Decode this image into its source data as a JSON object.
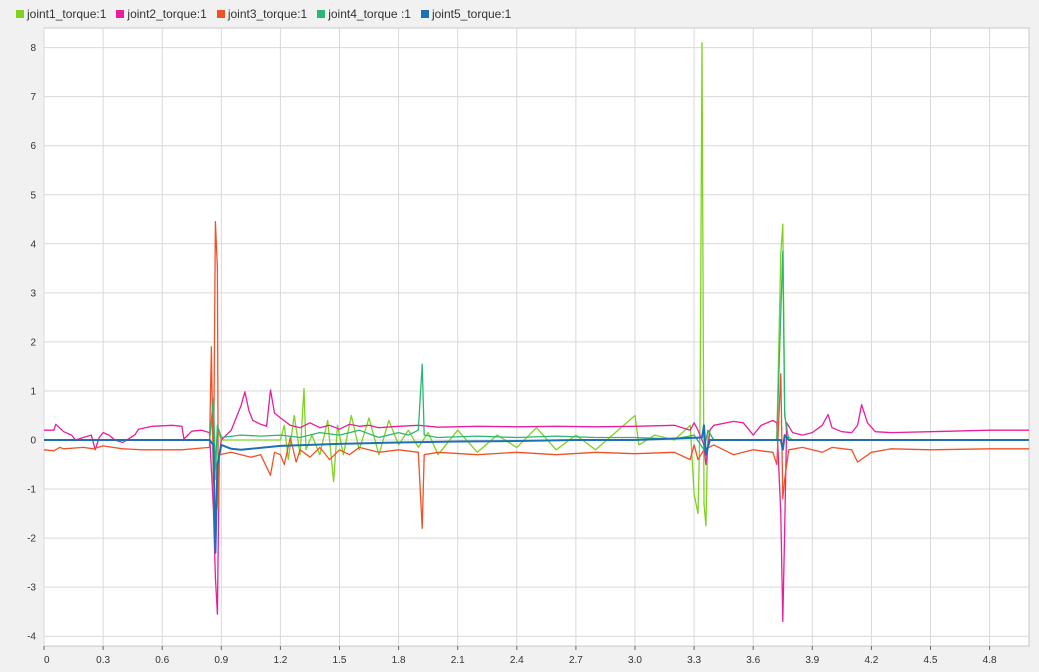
{
  "chart_data": {
    "type": "line",
    "title": "",
    "xlabel": "",
    "ylabel": "",
    "xlim": [
      0,
      5.0
    ],
    "ylim": [
      -4.2,
      8.4
    ],
    "grid": true,
    "legend_position": "top-left",
    "x_ticks": [
      0,
      0.3,
      0.6,
      0.9,
      1.2,
      1.5,
      1.8,
      2.1,
      2.4,
      2.7,
      3.0,
      3.3,
      3.6,
      3.9,
      4.2,
      4.5,
      4.8
    ],
    "x_tick_labels": [
      "0",
      "0.3",
      "0.6",
      "0.9",
      "1.2",
      "1.5",
      "1.8",
      "2.1",
      "2.4",
      "2.7",
      "3.0",
      "3.3",
      "3.6",
      "3.9",
      "4.2",
      "4.5",
      "4.8"
    ],
    "y_ticks": [
      -4,
      -3,
      -2,
      -1,
      0,
      1,
      2,
      3,
      4,
      5,
      6,
      7,
      8
    ],
    "y_tick_labels": [
      "-4",
      "-3",
      "-2",
      "-1",
      "0",
      "1",
      "2",
      "3",
      "4",
      "5",
      "6",
      "7",
      "8"
    ],
    "series": [
      {
        "name": "joint1_torque:1",
        "color": "#7ed321",
        "points": [
          [
            0,
            0
          ],
          [
            0.84,
            0
          ],
          [
            0.86,
            0.6
          ],
          [
            0.87,
            -0.8
          ],
          [
            0.88,
            0.2
          ],
          [
            0.9,
            0
          ],
          [
            1.2,
            0
          ],
          [
            1.22,
            0.3
          ],
          [
            1.24,
            -0.4
          ],
          [
            1.27,
            0.5
          ],
          [
            1.3,
            -0.3
          ],
          [
            1.32,
            1.05
          ],
          [
            1.33,
            -0.2
          ],
          [
            1.36,
            0.1
          ],
          [
            1.4,
            -0.3
          ],
          [
            1.44,
            0.4
          ],
          [
            1.47,
            -0.85
          ],
          [
            1.49,
            0.3
          ],
          [
            1.52,
            -0.3
          ],
          [
            1.56,
            0.5
          ],
          [
            1.6,
            -0.2
          ],
          [
            1.65,
            0.45
          ],
          [
            1.7,
            -0.3
          ],
          [
            1.75,
            0.4
          ],
          [
            1.8,
            -0.1
          ],
          [
            1.85,
            0.2
          ],
          [
            1.9,
            -0.15
          ],
          [
            1.95,
            0.15
          ],
          [
            2.0,
            -0.3
          ],
          [
            2.1,
            0.2
          ],
          [
            2.2,
            -0.25
          ],
          [
            2.3,
            0.1
          ],
          [
            2.4,
            -0.15
          ],
          [
            2.5,
            0.25
          ],
          [
            2.6,
            -0.2
          ],
          [
            2.7,
            0.1
          ],
          [
            2.8,
            -0.2
          ],
          [
            2.9,
            0.15
          ],
          [
            3.0,
            0.5
          ],
          [
            3.02,
            -0.1
          ],
          [
            3.1,
            0.1
          ],
          [
            3.2,
            0
          ],
          [
            3.28,
            0.3
          ],
          [
            3.3,
            -1.1
          ],
          [
            3.32,
            -1.5
          ],
          [
            3.33,
            0.3
          ],
          [
            3.34,
            8.1
          ],
          [
            3.35,
            -1.3
          ],
          [
            3.36,
            -1.75
          ],
          [
            3.37,
            0.2
          ],
          [
            3.4,
            0
          ],
          [
            3.72,
            0
          ],
          [
            3.74,
            3.8
          ],
          [
            3.75,
            4.4
          ],
          [
            3.76,
            0.6
          ],
          [
            3.77,
            0.1
          ],
          [
            3.8,
            0
          ],
          [
            5.0,
            0
          ]
        ]
      },
      {
        "name": "joint2_torque:1",
        "color": "#e91e9c",
        "points": [
          [
            0,
            0.2
          ],
          [
            0.05,
            0.2
          ],
          [
            0.06,
            0.32
          ],
          [
            0.1,
            0.17
          ],
          [
            0.14,
            0.1
          ],
          [
            0.16,
            0
          ],
          [
            0.2,
            0.05
          ],
          [
            0.24,
            0.1
          ],
          [
            0.26,
            -0.2
          ],
          [
            0.28,
            0.05
          ],
          [
            0.3,
            0.15
          ],
          [
            0.33,
            0.1
          ],
          [
            0.36,
            0
          ],
          [
            0.4,
            -0.05
          ],
          [
            0.42,
            0
          ],
          [
            0.46,
            0.1
          ],
          [
            0.48,
            0.22
          ],
          [
            0.55,
            0.28
          ],
          [
            0.65,
            0.3
          ],
          [
            0.7,
            0.28
          ],
          [
            0.71,
            0.02
          ],
          [
            0.75,
            0.18
          ],
          [
            0.8,
            0.2
          ],
          [
            0.84,
            0.15
          ],
          [
            0.86,
            -1.4
          ],
          [
            0.87,
            -2.8
          ],
          [
            0.88,
            -3.55
          ],
          [
            0.89,
            -0.3
          ],
          [
            0.9,
            0
          ],
          [
            0.95,
            0.2
          ],
          [
            0.98,
            0.5
          ],
          [
            1.0,
            0.7
          ],
          [
            1.02,
            0.98
          ],
          [
            1.04,
            0.6
          ],
          [
            1.06,
            0.4
          ],
          [
            1.1,
            0.32
          ],
          [
            1.13,
            0.28
          ],
          [
            1.15,
            1.02
          ],
          [
            1.17,
            0.55
          ],
          [
            1.2,
            0.45
          ],
          [
            1.25,
            0.3
          ],
          [
            1.3,
            0.25
          ],
          [
            1.35,
            0.35
          ],
          [
            1.4,
            0.25
          ],
          [
            1.45,
            0.3
          ],
          [
            1.5,
            0.22
          ],
          [
            1.55,
            0.32
          ],
          [
            1.6,
            0.28
          ],
          [
            1.65,
            0.3
          ],
          [
            1.7,
            0.25
          ],
          [
            1.8,
            0.28
          ],
          [
            1.9,
            0.3
          ],
          [
            2.0,
            0.26
          ],
          [
            2.2,
            0.28
          ],
          [
            2.4,
            0.27
          ],
          [
            2.6,
            0.28
          ],
          [
            2.8,
            0.27
          ],
          [
            3.0,
            0.28
          ],
          [
            3.2,
            0.3
          ],
          [
            3.28,
            0.2
          ],
          [
            3.3,
            0.35
          ],
          [
            3.32,
            0.2
          ],
          [
            3.35,
            -0.1
          ],
          [
            3.36,
            -0.5
          ],
          [
            3.38,
            0.2
          ],
          [
            3.4,
            0.3
          ],
          [
            3.5,
            0.38
          ],
          [
            3.55,
            0.35
          ],
          [
            3.58,
            0.2
          ],
          [
            3.6,
            0.1
          ],
          [
            3.64,
            0.3
          ],
          [
            3.7,
            0.4
          ],
          [
            3.72,
            0.35
          ],
          [
            3.74,
            -1.5
          ],
          [
            3.75,
            -3.7
          ],
          [
            3.76,
            -1.8
          ],
          [
            3.77,
            0.35
          ],
          [
            3.8,
            0.15
          ],
          [
            3.85,
            0.1
          ],
          [
            3.9,
            0.15
          ],
          [
            3.95,
            0.3
          ],
          [
            3.98,
            0.52
          ],
          [
            4.0,
            0.25
          ],
          [
            4.05,
            0.17
          ],
          [
            4.1,
            0.15
          ],
          [
            4.13,
            0.3
          ],
          [
            4.15,
            0.72
          ],
          [
            4.18,
            0.35
          ],
          [
            4.22,
            0.17
          ],
          [
            4.3,
            0.15
          ],
          [
            4.5,
            0.17
          ],
          [
            4.8,
            0.2
          ],
          [
            5.0,
            0.2
          ]
        ]
      },
      {
        "name": "joint3_torque:1",
        "color": "#f05228",
        "points": [
          [
            0,
            -0.2
          ],
          [
            0.05,
            -0.22
          ],
          [
            0.08,
            -0.15
          ],
          [
            0.1,
            -0.18
          ],
          [
            0.2,
            -0.15
          ],
          [
            0.25,
            -0.18
          ],
          [
            0.3,
            -0.12
          ],
          [
            0.35,
            -0.15
          ],
          [
            0.4,
            -0.18
          ],
          [
            0.5,
            -0.2
          ],
          [
            0.7,
            -0.2
          ],
          [
            0.84,
            -0.15
          ],
          [
            0.85,
            1.9
          ],
          [
            0.86,
            -0.9
          ],
          [
            0.87,
            4.45
          ],
          [
            0.88,
            3.5
          ],
          [
            0.885,
            -1.4
          ],
          [
            0.89,
            -0.3
          ],
          [
            0.95,
            -0.25
          ],
          [
            1.05,
            -0.35
          ],
          [
            1.1,
            -0.3
          ],
          [
            1.15,
            -0.72
          ],
          [
            1.17,
            -0.25
          ],
          [
            1.2,
            -0.3
          ],
          [
            1.22,
            -0.5
          ],
          [
            1.25,
            0.05
          ],
          [
            1.28,
            -0.45
          ],
          [
            1.3,
            -0.2
          ],
          [
            1.35,
            -0.35
          ],
          [
            1.4,
            -0.15
          ],
          [
            1.45,
            -0.4
          ],
          [
            1.5,
            -0.2
          ],
          [
            1.55,
            -0.3
          ],
          [
            1.6,
            -0.15
          ],
          [
            1.7,
            -0.25
          ],
          [
            1.8,
            -0.2
          ],
          [
            1.9,
            -0.25
          ],
          [
            1.92,
            -1.8
          ],
          [
            1.93,
            -0.3
          ],
          [
            2.0,
            -0.25
          ],
          [
            2.2,
            -0.3
          ],
          [
            2.4,
            -0.25
          ],
          [
            2.6,
            -0.3
          ],
          [
            2.8,
            -0.25
          ],
          [
            3.0,
            -0.28
          ],
          [
            3.2,
            -0.25
          ],
          [
            3.28,
            -0.4
          ],
          [
            3.3,
            -0.1
          ],
          [
            3.32,
            -0.4
          ],
          [
            3.35,
            -0.2
          ],
          [
            3.4,
            -0.1
          ],
          [
            3.5,
            -0.3
          ],
          [
            3.6,
            -0.2
          ],
          [
            3.7,
            -0.25
          ],
          [
            3.72,
            -0.5
          ],
          [
            3.74,
            1.35
          ],
          [
            3.75,
            -1.2
          ],
          [
            3.76,
            -0.8
          ],
          [
            3.78,
            -0.2
          ],
          [
            3.85,
            -0.15
          ],
          [
            3.9,
            -0.2
          ],
          [
            3.95,
            -0.25
          ],
          [
            4.0,
            -0.15
          ],
          [
            4.1,
            -0.2
          ],
          [
            4.13,
            -0.45
          ],
          [
            4.2,
            -0.25
          ],
          [
            4.3,
            -0.18
          ],
          [
            4.5,
            -0.2
          ],
          [
            4.8,
            -0.18
          ],
          [
            5.0,
            -0.18
          ]
        ]
      },
      {
        "name": "joint4_torque :1",
        "color": "#2bb673",
        "points": [
          [
            0,
            0
          ],
          [
            0.84,
            0
          ],
          [
            0.86,
            0.85
          ],
          [
            0.87,
            -0.6
          ],
          [
            0.88,
            0.3
          ],
          [
            0.9,
            0.05
          ],
          [
            1.0,
            0.1
          ],
          [
            1.1,
            0.08
          ],
          [
            1.2,
            0.1
          ],
          [
            1.3,
            0.05
          ],
          [
            1.4,
            0.15
          ],
          [
            1.5,
            0.1
          ],
          [
            1.6,
            0.2
          ],
          [
            1.7,
            0.05
          ],
          [
            1.8,
            0.15
          ],
          [
            1.85,
            0.1
          ],
          [
            1.9,
            0.2
          ],
          [
            1.92,
            1.55
          ],
          [
            1.93,
            0.1
          ],
          [
            2.0,
            0.05
          ],
          [
            2.2,
            0.08
          ],
          [
            2.4,
            0.05
          ],
          [
            2.6,
            0.08
          ],
          [
            2.8,
            0.05
          ],
          [
            3.0,
            0.05
          ],
          [
            3.2,
            0.02
          ],
          [
            3.3,
            0.1
          ],
          [
            3.35,
            -0.2
          ],
          [
            3.37,
            0.2
          ],
          [
            3.4,
            0
          ],
          [
            3.72,
            0
          ],
          [
            3.74,
            2.6
          ],
          [
            3.75,
            3.85
          ],
          [
            3.76,
            0.5
          ],
          [
            3.78,
            0
          ],
          [
            5.0,
            0
          ]
        ]
      },
      {
        "name": "joint5_torque:1",
        "color": "#1f6fb5",
        "points": [
          [
            0,
            0
          ],
          [
            0.84,
            0
          ],
          [
            0.86,
            -0.1
          ],
          [
            0.87,
            -2.3
          ],
          [
            0.88,
            -0.5
          ],
          [
            0.9,
            -0.1
          ],
          [
            0.95,
            -0.18
          ],
          [
            1.0,
            -0.2
          ],
          [
            1.2,
            -0.12
          ],
          [
            1.5,
            -0.08
          ],
          [
            1.8,
            -0.05
          ],
          [
            2.1,
            -0.03
          ],
          [
            2.4,
            -0.02
          ],
          [
            2.7,
            0
          ],
          [
            3.0,
            0
          ],
          [
            3.34,
            0.05
          ],
          [
            3.35,
            0.3
          ],
          [
            3.36,
            -0.3
          ],
          [
            3.38,
            0
          ],
          [
            3.74,
            0
          ],
          [
            3.75,
            -0.2
          ],
          [
            3.76,
            0.1
          ],
          [
            3.78,
            0
          ],
          [
            5.0,
            0
          ]
        ]
      }
    ]
  }
}
